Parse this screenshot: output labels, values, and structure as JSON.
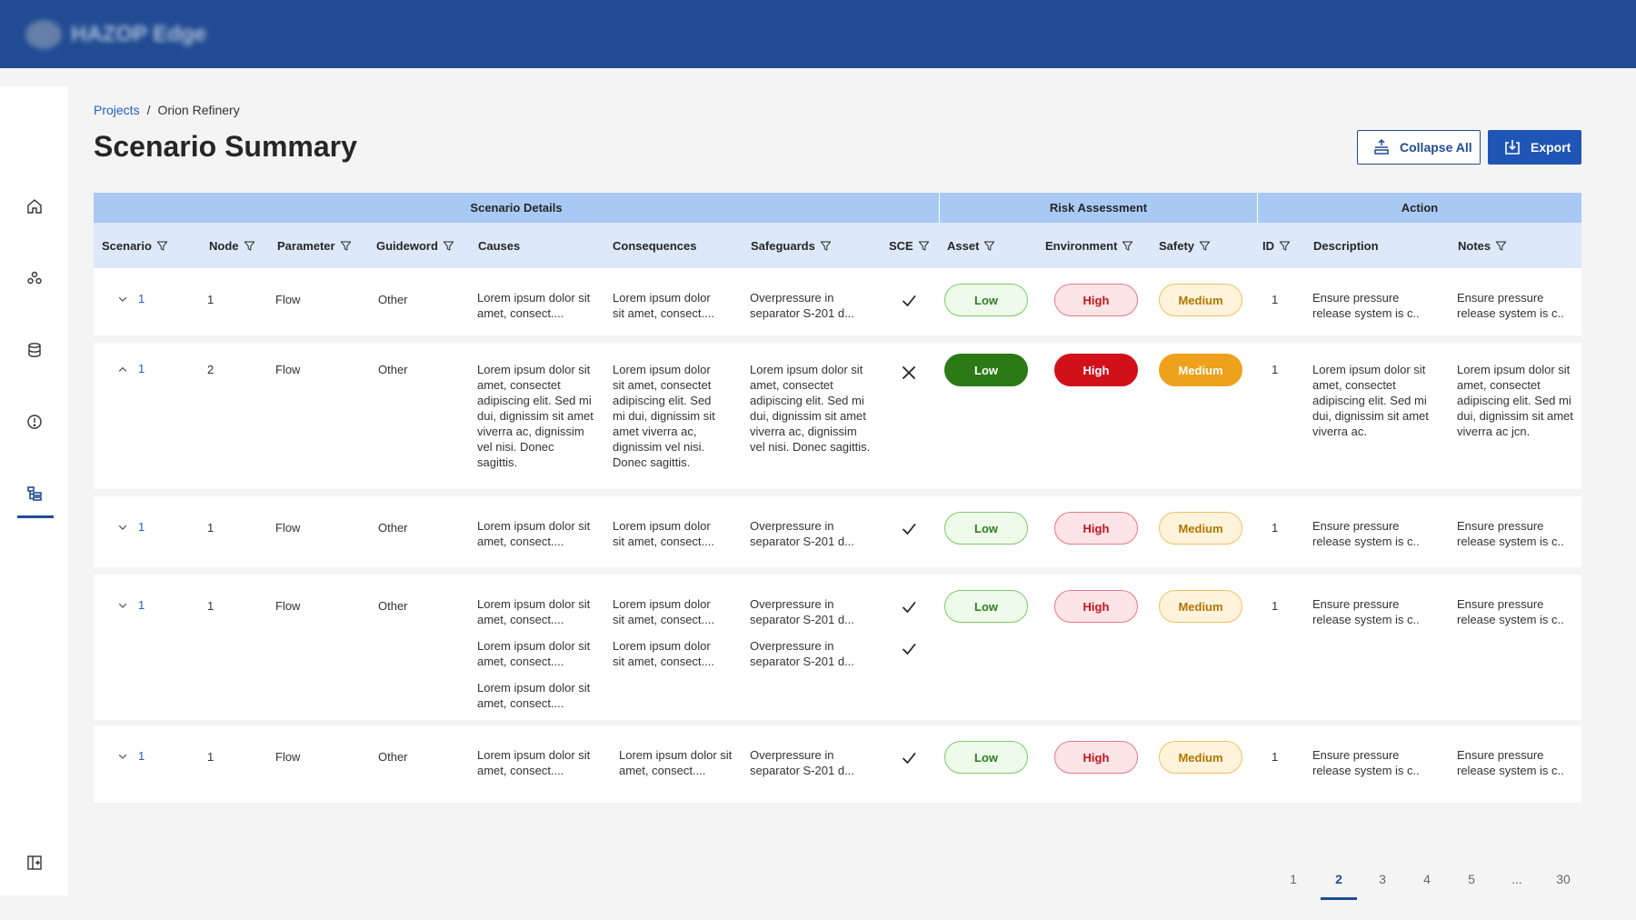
{
  "app": {
    "brand_name": "HAZOP Edge"
  },
  "breadcrumb": {
    "root": "Projects",
    "separator": "/",
    "current": "Orion Refinery"
  },
  "page": {
    "title": "Scenario Summary"
  },
  "toolbar": {
    "collapse_label": "Collapse All",
    "export_label": "Export"
  },
  "table": {
    "groups": [
      "Scenario Details",
      "Risk Assessment",
      "Action"
    ],
    "columns": [
      "Scenario",
      "Node",
      "Parameter",
      "Guideword",
      "Causes",
      "Consequences",
      "Safeguards",
      "SCE",
      "Asset",
      "Environment",
      "Safety",
      "ID",
      "Description",
      "Notes"
    ],
    "rows": [
      {
        "scenario": "1",
        "node": "1",
        "parameter": "Flow",
        "guideword": "Other",
        "causes": [
          "Lorem ipsum dolor sit amet, consect...."
        ],
        "consequences": [
          "Lorem ipsum dolor sit amet, consect...."
        ],
        "safeguards": [
          "Overpressure in separator S-201 d..."
        ],
        "sce": [
          "check"
        ],
        "asset": "Low",
        "environment": "High",
        "safety": "Medium",
        "id": "1",
        "description": "Ensure pressure release system is c..",
        "notes": "Ensure pressure release system is c.."
      },
      {
        "scenario": "1",
        "node": "2",
        "parameter": "Flow",
        "guideword": "Other",
        "causes": [
          "Lorem ipsum dolor sit amet, consectet adipiscing elit. Sed mi dui, dignissim sit amet viverra ac, dignissim vel nisi. Donec sagittis."
        ],
        "consequences": [
          "Lorem ipsum dolor sit amet, consectet adipiscing elit. Sed mi dui, dignissim sit amet viverra ac, dignissim vel nisi. Donec sagittis."
        ],
        "safeguards": [
          "Lorem ipsum dolor sit amet, consectet adipiscing elit. Sed mi dui, dignissim sit amet viverra ac, dignissim vel nisi. Donec sagittis."
        ],
        "sce": [
          "cross"
        ],
        "asset": "Low",
        "environment": "High",
        "safety": "Medium",
        "id": "1",
        "description": "Lorem ipsum dolor sit amet, consectet adipiscing elit. Sed mi dui, dignissim sit amet viverra ac.",
        "notes": "Lorem ipsum dolor sit amet, consectet adipiscing elit. Sed mi dui, dignissim sit amet viverra ac jcn."
      },
      {
        "scenario": "1",
        "node": "1",
        "parameter": "Flow",
        "guideword": "Other",
        "causes": [
          "Lorem ipsum dolor sit amet, consect...."
        ],
        "consequences": [
          "Lorem ipsum dolor sit amet, consect...."
        ],
        "safeguards": [
          "Overpressure in separator S-201 d..."
        ],
        "sce": [
          "check"
        ],
        "asset": "Low",
        "environment": "High",
        "safety": "Medium",
        "id": "1",
        "description": "Ensure pressure release system is c..",
        "notes": "Ensure pressure release system is c.."
      },
      {
        "scenario": "1",
        "node": "1",
        "parameter": "Flow",
        "guideword": "Other",
        "causes": [
          "Lorem ipsum dolor sit amet, consect....",
          "Lorem ipsum dolor sit amet, consect....",
          "Lorem ipsum dolor sit amet, consect...."
        ],
        "consequences": [
          "Lorem ipsum dolor sit amet, consect....",
          "Lorem ipsum dolor sit amet, consect...."
        ],
        "safeguards": [
          "Overpressure in separator S-201 d...",
          "Overpressure in separator S-201 d..."
        ],
        "sce": [
          "check",
          "check"
        ],
        "asset": "Low",
        "environment": "High",
        "safety": "Medium",
        "id": "1",
        "description": "Ensure pressure release system is c..",
        "notes": "Ensure pressure release system is c.."
      },
      {
        "scenario": "1",
        "node": "1",
        "parameter": "Flow",
        "guideword": "Other",
        "causes": [
          "Lorem ipsum dolor sit amet, consect...."
        ],
        "consequences": [
          "Lorem ipsum dolor sit amet, consect...."
        ],
        "safeguards": [
          "Overpressure in separator S-201 d..."
        ],
        "sce": [
          "check"
        ],
        "asset": "Low",
        "environment": "High",
        "safety": "Medium",
        "id": "1",
        "description": "Ensure pressure release system is c..",
        "notes": "Ensure pressure release system is c.."
      }
    ]
  },
  "pagination": {
    "pages": [
      "1",
      "2",
      "3",
      "4",
      "5",
      "...",
      "30"
    ],
    "current": "2"
  },
  "colors": {
    "header_bar": "#214c93",
    "primary": "#1f56b5",
    "group_header": "#a9c9f5",
    "column_header": "#dde9f9",
    "low": "#2b7a16",
    "high": "#d1101a",
    "medium": "#eea11b"
  },
  "icons": {
    "sidebar": [
      "home-icon",
      "network-icon",
      "database-icon",
      "alert-icon",
      "hierarchy-icon",
      "panel-collapse-icon"
    ]
  }
}
